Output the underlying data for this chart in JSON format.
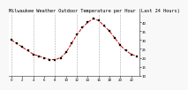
{
  "title": "Milwaukee Weather Outdoor Temperature per Hour (Last 24 Hours)",
  "hours": [
    0,
    1,
    2,
    3,
    4,
    5,
    6,
    7,
    8,
    9,
    10,
    11,
    12,
    13,
    14,
    15,
    16,
    17,
    18,
    19,
    20,
    21,
    22,
    23
  ],
  "temperatures": [
    30,
    28,
    26,
    24,
    22,
    21,
    20,
    19,
    19,
    20,
    23,
    28,
    33,
    37,
    40,
    42,
    41,
    38,
    35,
    31,
    27,
    24,
    22,
    21
  ],
  "ylim": [
    10,
    45
  ],
  "yticks": [
    10,
    15,
    20,
    25,
    30,
    35,
    40
  ],
  "xtick_step": 2,
  "line_color": "#cc0000",
  "marker_color": "#000000",
  "grid_color": "#aaaaaa",
  "bg_color": "#f8f8f8",
  "plot_bg_color": "#ffffff",
  "text_color": "#000000",
  "title_fontsize": 3.8,
  "tick_fontsize": 2.8,
  "line_width": 0.7,
  "marker_size": 1.5,
  "grid_linewidth": 0.4,
  "spine_linewidth": 0.5
}
